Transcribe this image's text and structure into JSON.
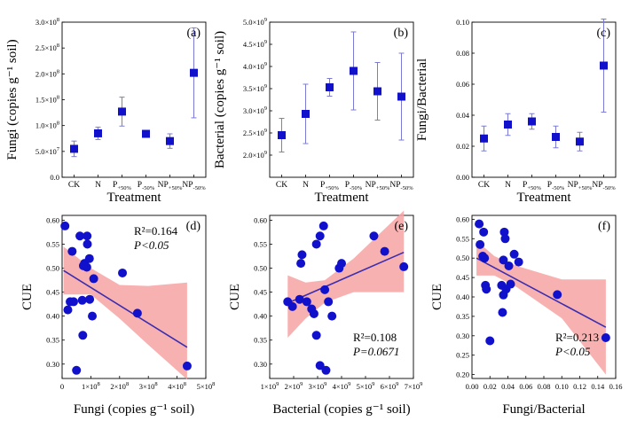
{
  "colors": {
    "marker": "#1111cc",
    "fit_line": "#3a2db0",
    "ci_band": "#f7a3a3",
    "error_bar": "#7b7bd6"
  },
  "chart_data": [
    {
      "type": "scatter",
      "panel_label": "(a)",
      "xlabel": "Treatment",
      "ylabel": "Fungi (copies g⁻¹ soil)",
      "categories": [
        "CK",
        "N",
        "P+50%",
        "P-50%",
        "NP+50%",
        "NP-50%"
      ],
      "category_tex": [
        {
          "main": "CK",
          "sub": ""
        },
        {
          "main": "N",
          "sub": ""
        },
        {
          "main": "P",
          "sub": "+50%"
        },
        {
          "main": "P",
          "sub": "-50%"
        },
        {
          "main": "NP",
          "sub": "+50%"
        },
        {
          "main": "NP",
          "sub": "-50%"
        }
      ],
      "values": [
        55000000.0,
        85000000.0,
        127000000.0,
        84000000.0,
        70000000.0,
        202000000.0
      ],
      "error": [
        15000000.0,
        12000000.0,
        28000000.0,
        5000000.0,
        14000000.0,
        87000000.0
      ],
      "ylim": [
        0,
        300000000.0
      ],
      "yticks": [
        {
          "v": 0,
          "main": "0.0",
          "exp": ""
        },
        {
          "v": 50000000.0,
          "main": "5.0×10",
          "exp": "7"
        },
        {
          "v": 100000000.0,
          "main": "1.0×10",
          "exp": "8"
        },
        {
          "v": 150000000.0,
          "main": "1.5×10",
          "exp": "8"
        },
        {
          "v": 200000000.0,
          "main": "2.0×10",
          "exp": "8"
        },
        {
          "v": 250000000.0,
          "main": "2.5×10",
          "exp": "8"
        },
        {
          "v": 300000000.0,
          "main": "3.0×10",
          "exp": "8"
        }
      ]
    },
    {
      "type": "scatter",
      "panel_label": "(b)",
      "xlabel": "Treatment",
      "ylabel": "Bacterial (copies g⁻¹ soil)",
      "categories": [
        "CK",
        "N",
        "P+50%",
        "P-50%",
        "NP+50%",
        "NP-50%"
      ],
      "category_tex": [
        {
          "main": "CK",
          "sub": ""
        },
        {
          "main": "N",
          "sub": ""
        },
        {
          "main": "P",
          "sub": "+50%"
        },
        {
          "main": "P",
          "sub": "-50%"
        },
        {
          "main": "NP",
          "sub": "+50%"
        },
        {
          "main": "NP",
          "sub": "-50%"
        }
      ],
      "values": [
        2450000000.0,
        2930000000.0,
        3530000000.0,
        3900000000.0,
        3440000000.0,
        3320000000.0
      ],
      "error": [
        380000000.0,
        670000000.0,
        200000000.0,
        880000000.0,
        650000000.0,
        980000000.0
      ],
      "ylim": [
        1500000000.0,
        5000000000.0
      ],
      "yticks": [
        {
          "v": 2000000000.0,
          "main": "2.0×10",
          "exp": "9"
        },
        {
          "v": 2500000000.0,
          "main": "2.5×10",
          "exp": "9"
        },
        {
          "v": 3000000000.0,
          "main": "3.0×10",
          "exp": "9"
        },
        {
          "v": 3500000000.0,
          "main": "3.5×10",
          "exp": "9"
        },
        {
          "v": 4000000000.0,
          "main": "4.0×10",
          "exp": "9"
        },
        {
          "v": 4500000000.0,
          "main": "4.5×10",
          "exp": "9"
        },
        {
          "v": 5000000000.0,
          "main": "5.0×10",
          "exp": "9"
        }
      ]
    },
    {
      "type": "scatter",
      "panel_label": "(c)",
      "xlabel": "Treatment",
      "ylabel": "Fungi/Bacterial",
      "categories": [
        "CK",
        "N",
        "P+50%",
        "P-50%",
        "NP+50%",
        "NP-50%"
      ],
      "category_tex": [
        {
          "main": "CK",
          "sub": ""
        },
        {
          "main": "N",
          "sub": ""
        },
        {
          "main": "P",
          "sub": "+50%"
        },
        {
          "main": "P",
          "sub": "-50%"
        },
        {
          "main": "NP",
          "sub": "+50%"
        },
        {
          "main": "NP",
          "sub": "-50%"
        }
      ],
      "values": [
        0.025,
        0.034,
        0.036,
        0.026,
        0.023,
        0.072
      ],
      "error": [
        0.008,
        0.007,
        0.005,
        0.007,
        0.006,
        0.03
      ],
      "ylim": [
        0,
        0.1
      ],
      "yticks": [
        {
          "v": 0.0,
          "main": "0.00",
          "exp": ""
        },
        {
          "v": 0.02,
          "main": "0.02",
          "exp": ""
        },
        {
          "v": 0.04,
          "main": "0.04",
          "exp": ""
        },
        {
          "v": 0.06,
          "main": "0.06",
          "exp": ""
        },
        {
          "v": 0.08,
          "main": "0.08",
          "exp": ""
        },
        {
          "v": 0.1,
          "main": "0.10",
          "exp": ""
        }
      ]
    },
    {
      "type": "scatter",
      "panel_label": "(d)",
      "xlabel": "Fungi (copies g⁻¹ soil)",
      "ylabel": "CUE",
      "annotation": {
        "r2": "R²=0.164",
        "p": "P<0.05"
      },
      "ann_pos": "top-right",
      "xlim": [
        0,
        500000000.0
      ],
      "ylim": [
        0.27,
        0.61
      ],
      "xticks": [
        {
          "v": 0,
          "main": "0",
          "exp": ""
        },
        {
          "v": 100000000.0,
          "main": "1×10",
          "exp": "8"
        },
        {
          "v": 200000000.0,
          "main": "2×10",
          "exp": "8"
        },
        {
          "v": 300000000.0,
          "main": "3×10",
          "exp": "8"
        },
        {
          "v": 400000000.0,
          "main": "4×10",
          "exp": "8"
        },
        {
          "v": 500000000.0,
          "main": "5×10",
          "exp": "8"
        }
      ],
      "yticks": [
        {
          "v": 0.3,
          "main": "0.30"
        },
        {
          "v": 0.35,
          "main": "0.35"
        },
        {
          "v": 0.4,
          "main": "0.40"
        },
        {
          "v": 0.45,
          "main": "0.45"
        },
        {
          "v": 0.5,
          "main": "0.50"
        },
        {
          "v": 0.55,
          "main": "0.55"
        },
        {
          "v": 0.6,
          "main": "0.60"
        }
      ],
      "points": [
        {
          "x": 10000000.0,
          "y": 0.588
        },
        {
          "x": 35000000.0,
          "y": 0.535
        },
        {
          "x": 62000000.0,
          "y": 0.567
        },
        {
          "x": 87000000.0,
          "y": 0.567
        },
        {
          "x": 88000000.0,
          "y": 0.55
        },
        {
          "x": 78000000.0,
          "y": 0.51
        },
        {
          "x": 86000000.0,
          "y": 0.502
        },
        {
          "x": 74000000.0,
          "y": 0.505
        },
        {
          "x": 95000000.0,
          "y": 0.52
        },
        {
          "x": 28000000.0,
          "y": 0.43
        },
        {
          "x": 20000000.0,
          "y": 0.413
        },
        {
          "x": 40000000.0,
          "y": 0.43
        },
        {
          "x": 70000000.0,
          "y": 0.433
        },
        {
          "x": 96000000.0,
          "y": 0.435
        },
        {
          "x": 72000000.0,
          "y": 0.36
        },
        {
          "x": 105000000.0,
          "y": 0.4
        },
        {
          "x": 110000000.0,
          "y": 0.478
        },
        {
          "x": 50000000.0,
          "y": 0.287
        },
        {
          "x": 210000000.0,
          "y": 0.49
        },
        {
          "x": 262000000.0,
          "y": 0.406
        },
        {
          "x": 435000000.0,
          "y": 0.296
        }
      ],
      "fit": {
        "x": [
          5000000.0,
          435000000.0
        ],
        "y": [
          0.495,
          0.335
        ]
      },
      "ci": {
        "x": [
          5000000.0,
          100000000.0,
          200000000.0,
          300000000.0,
          435000000.0
        ],
        "lower": [
          0.445,
          0.445,
          0.395,
          0.34,
          0.268
        ],
        "upper": [
          0.545,
          0.5,
          0.465,
          0.463,
          0.47
        ]
      }
    },
    {
      "type": "scatter",
      "panel_label": "(e)",
      "xlabel": "Bacterial (copies g⁻¹ soil)",
      "ylabel": "CUE",
      "annotation": {
        "r2": "R²=0.108",
        "p": "P=0.0671"
      },
      "ann_pos": "bottom-right",
      "xlim": [
        1000000000.0,
        7000000000.0
      ],
      "ylim": [
        0.27,
        0.61
      ],
      "xticks": [
        {
          "v": 1000000000.0,
          "main": "1×10",
          "exp": "9"
        },
        {
          "v": 2000000000.0,
          "main": "2×10",
          "exp": "9"
        },
        {
          "v": 3000000000.0,
          "main": "3×10",
          "exp": "9"
        },
        {
          "v": 4000000000.0,
          "main": "4×10",
          "exp": "9"
        },
        {
          "v": 5000000000.0,
          "main": "5×10",
          "exp": "9"
        },
        {
          "v": 6000000000.0,
          "main": "6×10",
          "exp": "9"
        },
        {
          "v": 7000000000.0,
          "main": "7×10",
          "exp": "9"
        }
      ],
      "yticks": [
        {
          "v": 0.3,
          "main": "0.30"
        },
        {
          "v": 0.35,
          "main": "0.35"
        },
        {
          "v": 0.4,
          "main": "0.40"
        },
        {
          "v": 0.45,
          "main": "0.45"
        },
        {
          "v": 0.5,
          "main": "0.50"
        },
        {
          "v": 0.55,
          "main": "0.55"
        },
        {
          "v": 0.6,
          "main": "0.60"
        }
      ],
      "points": [
        {
          "x": 1750000000.0,
          "y": 0.43
        },
        {
          "x": 1950000000.0,
          "y": 0.42
        },
        {
          "x": 2250000000.0,
          "y": 0.435
        },
        {
          "x": 2350000000.0,
          "y": 0.528
        },
        {
          "x": 2300000000.0,
          "y": 0.51
        },
        {
          "x": 2550000000.0,
          "y": 0.43
        },
        {
          "x": 2750000000.0,
          "y": 0.415
        },
        {
          "x": 2850000000.0,
          "y": 0.405
        },
        {
          "x": 2950000000.0,
          "y": 0.36
        },
        {
          "x": 2950000000.0,
          "y": 0.55
        },
        {
          "x": 3100000000.0,
          "y": 0.567
        },
        {
          "x": 3250000000.0,
          "y": 0.588
        },
        {
          "x": 3300000000.0,
          "y": 0.455
        },
        {
          "x": 3450000000.0,
          "y": 0.43
        },
        {
          "x": 3600000000.0,
          "y": 0.4
        },
        {
          "x": 3900000000.0,
          "y": 0.5
        },
        {
          "x": 4000000000.0,
          "y": 0.51
        },
        {
          "x": 3100000000.0,
          "y": 0.297
        },
        {
          "x": 3350000000.0,
          "y": 0.287
        },
        {
          "x": 5350000000.0,
          "y": 0.567
        },
        {
          "x": 5800000000.0,
          "y": 0.535
        },
        {
          "x": 6600000000.0,
          "y": 0.503
        }
      ],
      "fit": {
        "x": [
          1750000000.0,
          6600000000.0
        ],
        "y": [
          0.427,
          0.533
        ]
      },
      "ci": {
        "x": [
          1750000000.0,
          2500000000.0,
          3300000000.0,
          4500000000.0,
          6600000000.0
        ],
        "lower": [
          0.355,
          0.395,
          0.428,
          0.45,
          0.45
        ],
        "upper": [
          0.485,
          0.47,
          0.475,
          0.52,
          0.62
        ]
      }
    },
    {
      "type": "scatter",
      "panel_label": "(f)",
      "xlabel": "Fungi/Bacterial",
      "ylabel": "CUE",
      "annotation": {
        "r2": "R²=0.213",
        "p": "P<0.05"
      },
      "ann_pos": "bottom-right",
      "xlim": [
        0,
        0.16
      ],
      "ylim": [
        0.19,
        0.61
      ],
      "xticks": [
        {
          "v": 0.0,
          "main": "0.00",
          "exp": ""
        },
        {
          "v": 0.02,
          "main": "0.02",
          "exp": ""
        },
        {
          "v": 0.04,
          "main": "0.04",
          "exp": ""
        },
        {
          "v": 0.06,
          "main": "0.06",
          "exp": ""
        },
        {
          "v": 0.08,
          "main": "0.08",
          "exp": ""
        },
        {
          "v": 0.1,
          "main": "0.10",
          "exp": ""
        },
        {
          "v": 0.12,
          "main": "0.12",
          "exp": ""
        },
        {
          "v": 0.14,
          "main": "0.14",
          "exp": ""
        },
        {
          "v": 0.16,
          "main": "0.16",
          "exp": ""
        }
      ],
      "yticks": [
        {
          "v": 0.2,
          "main": "0.20"
        },
        {
          "v": 0.25,
          "main": "0.25"
        },
        {
          "v": 0.3,
          "main": "0.30"
        },
        {
          "v": 0.35,
          "main": "0.35"
        },
        {
          "v": 0.4,
          "main": "0.40"
        },
        {
          "v": 0.45,
          "main": "0.45"
        },
        {
          "v": 0.5,
          "main": "0.50"
        },
        {
          "v": 0.55,
          "main": "0.55"
        },
        {
          "v": 0.6,
          "main": "0.60"
        }
      ],
      "points": [
        {
          "x": 0.008,
          "y": 0.588
        },
        {
          "x": 0.013,
          "y": 0.567
        },
        {
          "x": 0.009,
          "y": 0.535
        },
        {
          "x": 0.036,
          "y": 0.567
        },
        {
          "x": 0.037,
          "y": 0.55
        },
        {
          "x": 0.012,
          "y": 0.505
        },
        {
          "x": 0.014,
          "y": 0.5
        },
        {
          "x": 0.047,
          "y": 0.51
        },
        {
          "x": 0.052,
          "y": 0.49
        },
        {
          "x": 0.035,
          "y": 0.495
        },
        {
          "x": 0.041,
          "y": 0.48
        },
        {
          "x": 0.015,
          "y": 0.43
        },
        {
          "x": 0.016,
          "y": 0.42
        },
        {
          "x": 0.033,
          "y": 0.43
        },
        {
          "x": 0.038,
          "y": 0.42
        },
        {
          "x": 0.043,
          "y": 0.433
        },
        {
          "x": 0.034,
          "y": 0.36
        },
        {
          "x": 0.035,
          "y": 0.405
        },
        {
          "x": 0.02,
          "y": 0.287
        },
        {
          "x": 0.095,
          "y": 0.406
        },
        {
          "x": 0.149,
          "y": 0.295
        }
      ],
      "fit": {
        "x": [
          0.005,
          0.149
        ],
        "y": [
          0.5,
          0.322
        ]
      },
      "ci": {
        "x": [
          0.005,
          0.025,
          0.05,
          0.1,
          0.149
        ],
        "lower": [
          0.455,
          0.455,
          0.425,
          0.345,
          0.2
        ],
        "upper": [
          0.545,
          0.505,
          0.48,
          0.445,
          0.445
        ]
      }
    }
  ]
}
